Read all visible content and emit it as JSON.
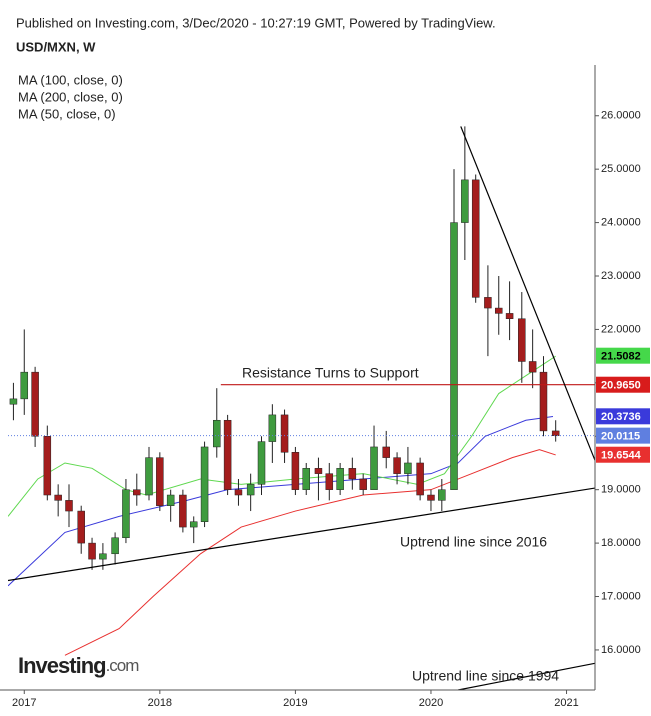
{
  "header": {
    "published": "Published on Investing.com, 3/Dec/2020 - 10:27:19 GMT, Powered by TradingView.",
    "symbol": "USD/MXN, W"
  },
  "logo": {
    "name": "Investing",
    "suffix": ".com"
  },
  "chart_data": {
    "type": "candlestick",
    "xlim": [
      2016.88,
      2021.21
    ],
    "xticks": [
      2017,
      2018,
      2019,
      2020,
      2021
    ],
    "ylim": [
      15.25,
      26.95
    ],
    "yticks": [
      {
        "value": 16,
        "label": "16.0000"
      },
      {
        "value": 17,
        "label": "17.0000"
      },
      {
        "value": 18,
        "label": "18.0000"
      },
      {
        "value": 19,
        "label": "19.0000"
      },
      {
        "value": 20,
        "label": "20.0000"
      },
      {
        "value": 21,
        "label": "21.0000"
      },
      {
        "value": 22,
        "label": "22.0000"
      },
      {
        "value": 23,
        "label": "23.0000"
      },
      {
        "value": 24,
        "label": "24.0000"
      },
      {
        "value": 25,
        "label": "25.0000"
      },
      {
        "value": 26,
        "label": "26.0000"
      }
    ],
    "up_color": "#3f9b3f",
    "down_color": "#a41d1d",
    "x": [
      2016.92,
      2017.0,
      2017.08,
      2017.17,
      2017.25,
      2017.33,
      2017.42,
      2017.5,
      2017.58,
      2017.67,
      2017.75,
      2017.83,
      2017.92,
      2018.0,
      2018.08,
      2018.17,
      2018.25,
      2018.33,
      2018.42,
      2018.5,
      2018.58,
      2018.67,
      2018.75,
      2018.83,
      2018.92,
      2019.0,
      2019.08,
      2019.17,
      2019.25,
      2019.33,
      2019.42,
      2019.5,
      2019.58,
      2019.67,
      2019.75,
      2019.83,
      2019.92,
      2020.0,
      2020.08,
      2020.17,
      2020.25,
      2020.33,
      2020.42,
      2020.5,
      2020.58,
      2020.67,
      2020.75,
      2020.83,
      2020.92
    ],
    "open": [
      20.6,
      20.7,
      21.2,
      20.0,
      18.9,
      18.8,
      18.6,
      18.0,
      17.7,
      17.8,
      18.1,
      19.0,
      18.9,
      19.6,
      18.7,
      18.9,
      18.3,
      18.4,
      19.8,
      20.3,
      19.0,
      18.9,
      19.1,
      19.9,
      20.4,
      19.7,
      19.0,
      19.4,
      19.3,
      19.0,
      19.4,
      19.2,
      19.0,
      19.8,
      19.6,
      19.3,
      19.5,
      18.9,
      18.8,
      19.0,
      24.0,
      24.8,
      22.6,
      22.4,
      22.3,
      22.2,
      21.4,
      21.2,
      20.1
    ],
    "high": [
      21.0,
      22.0,
      21.3,
      20.2,
      19.1,
      19.1,
      18.7,
      18.1,
      18.0,
      18.2,
      19.2,
      19.3,
      19.8,
      19.7,
      19.0,
      19.0,
      18.5,
      19.9,
      20.9,
      20.4,
      19.2,
      19.3,
      20.0,
      20.6,
      20.5,
      19.8,
      19.5,
      19.6,
      19.5,
      19.5,
      19.6,
      19.3,
      20.2,
      20.1,
      19.7,
      19.8,
      19.6,
      19.0,
      19.2,
      25.0,
      25.8,
      24.9,
      23.2,
      23.0,
      22.9,
      22.7,
      22.0,
      21.5,
      20.3
    ],
    "low": [
      20.3,
      20.4,
      19.8,
      18.8,
      18.5,
      18.3,
      17.8,
      17.5,
      17.5,
      17.6,
      18.0,
      18.7,
      18.8,
      18.6,
      18.4,
      18.2,
      18.0,
      18.3,
      19.6,
      18.9,
      18.7,
      18.6,
      18.9,
      19.5,
      19.5,
      18.9,
      18.9,
      18.8,
      18.8,
      18.9,
      19.0,
      18.9,
      19.0,
      19.4,
      19.1,
      19.1,
      18.8,
      18.6,
      18.6,
      19.0,
      23.3,
      22.5,
      21.5,
      21.9,
      21.8,
      21.0,
      20.9,
      20.0,
      19.9
    ],
    "close": [
      20.7,
      21.2,
      20.0,
      18.9,
      18.8,
      18.6,
      18.0,
      17.7,
      17.8,
      18.1,
      19.0,
      18.9,
      19.6,
      18.7,
      18.9,
      18.3,
      18.4,
      19.8,
      20.3,
      19.0,
      18.9,
      19.1,
      19.9,
      20.4,
      19.7,
      19.0,
      19.4,
      19.3,
      19.0,
      19.4,
      19.2,
      19.0,
      19.8,
      19.6,
      19.3,
      19.5,
      18.9,
      18.8,
      19.0,
      24.0,
      24.8,
      22.6,
      22.4,
      22.3,
      22.2,
      21.4,
      21.2,
      20.1,
      20.01
    ],
    "series": [
      {
        "name": "MA (100, close, 0)",
        "color": "#3a3adb",
        "x": [
          2016.88,
          2017.3,
          2017.7,
          2018.2,
          2018.5,
          2019.0,
          2019.5,
          2020.0,
          2020.2,
          2020.4,
          2020.7,
          2020.9
        ],
        "values": [
          17.2,
          18.2,
          18.5,
          18.8,
          19.0,
          19.1,
          19.2,
          19.3,
          19.5,
          20.0,
          20.3,
          20.37
        ]
      },
      {
        "name": "MA (200, close, 0)",
        "color": "#e8302f",
        "x": [
          2017.3,
          2017.7,
          2017.95,
          2018.3,
          2018.6,
          2019.0,
          2019.5,
          2020.0,
          2020.3,
          2020.6,
          2020.8,
          2020.92
        ],
        "values": [
          15.9,
          16.4,
          17.0,
          17.8,
          18.3,
          18.6,
          18.9,
          19.0,
          19.3,
          19.6,
          19.75,
          19.65
        ]
      },
      {
        "name": "MA (50, close, 0)",
        "color": "#5fd84f",
        "x": [
          2016.88,
          2017.1,
          2017.3,
          2017.5,
          2017.75,
          2017.9,
          2018.3,
          2018.6,
          2019.0,
          2019.5,
          2019.9,
          2020.1,
          2020.3,
          2020.5,
          2020.8,
          2020.92
        ],
        "values": [
          18.5,
          19.2,
          19.5,
          19.4,
          19.0,
          18.9,
          19.2,
          19.1,
          19.2,
          19.3,
          19.1,
          19.3,
          20.0,
          20.8,
          21.3,
          21.5
        ]
      }
    ],
    "trend_lines": [
      {
        "label": "Resistance Turns to Support",
        "color": "#c01818",
        "x": [
          2018.45,
          2021.21
        ],
        "values": [
          20.965,
          20.965
        ]
      },
      {
        "color": "#000000",
        "x": [
          2020.22,
          2021.21
        ],
        "values": [
          25.8,
          19.55
        ]
      },
      {
        "label": "Uptrend line since 2016",
        "color": "#000000",
        "x": [
          2016.88,
          2021.21
        ],
        "values": [
          17.3,
          19.03
        ]
      },
      {
        "label": "Uptrend line since 1994",
        "color": "#000000",
        "x": [
          2020.2,
          2021.21
        ],
        "values": [
          15.25,
          15.75
        ]
      }
    ],
    "price_tags": [
      {
        "value": 21.5082,
        "label": "21.5082",
        "color": "#45d84a",
        "text_color": "#000000"
      },
      {
        "value": 20.965,
        "label": "20.9650",
        "color": "#d81c1c",
        "text_color": "#ffffff"
      },
      {
        "value": 20.3736,
        "label": "20.3736",
        "color": "#3a3adb",
        "text_color": "#ffffff"
      },
      {
        "value": 20.0115,
        "label": "20.0115",
        "color": "#5f7fe0",
        "text_color": "#ffffff",
        "line": "dotted"
      },
      {
        "value": 19.6544,
        "label": "19.6544",
        "color": "#e8302f",
        "text_color": "#ffffff"
      }
    ]
  }
}
